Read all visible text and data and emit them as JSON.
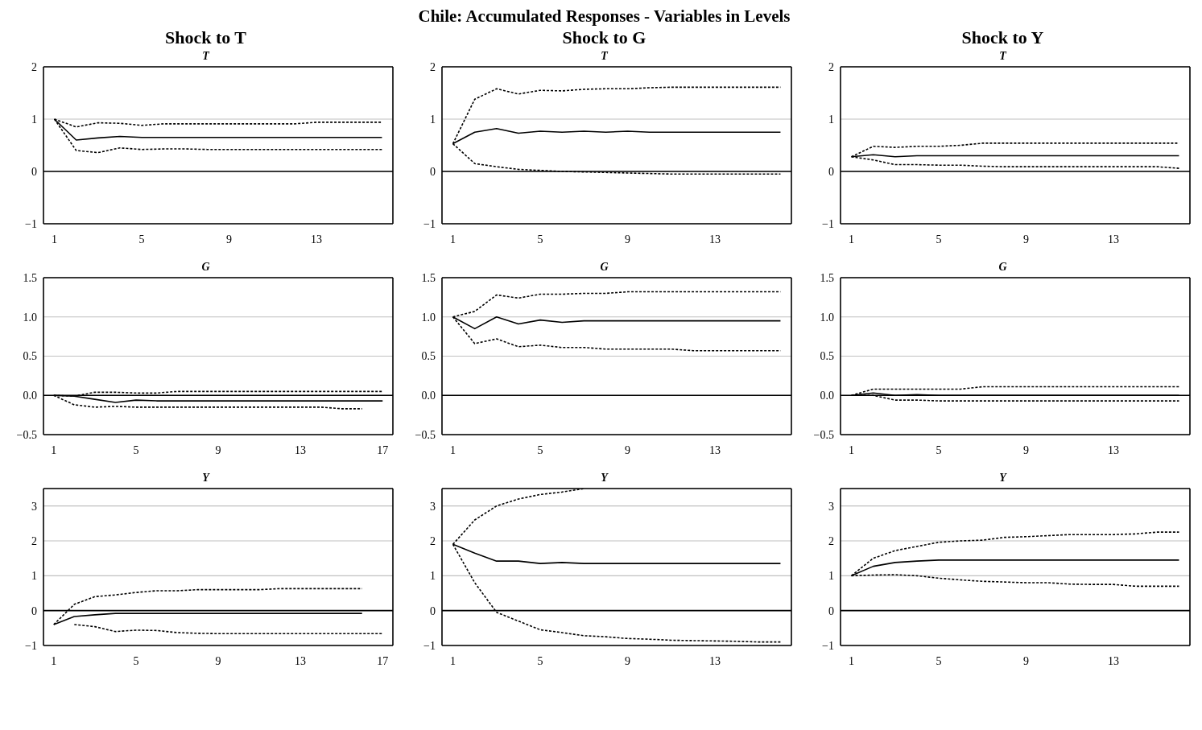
{
  "chart_data": [
    {
      "type": "line",
      "title": "T",
      "subtitle": "Shock to T",
      "x": [
        1,
        2,
        3,
        4,
        5,
        6,
        7,
        8,
        9,
        10,
        11,
        12,
        13,
        14,
        15,
        16
      ],
      "xlim": [
        0.5,
        16.5
      ],
      "xticks": [
        1,
        5,
        9,
        13
      ],
      "ylim": [
        -1,
        2
      ],
      "yticks": [
        {
          "value": -1,
          "label": "−1"
        },
        0,
        1,
        2
      ],
      "grid": "y",
      "ref_lines": [
        {
          "axis": "y",
          "value": 0,
          "color": "#000000"
        }
      ],
      "series": [
        {
          "color": "#000000",
          "line_style": "solid",
          "values": [
            1.0,
            0.6,
            0.64,
            0.67,
            0.65,
            0.65,
            0.65,
            0.65,
            0.65,
            0.65,
            0.65,
            0.65,
            0.65,
            0.65,
            0.65,
            0.65
          ]
        },
        {
          "color": "#000000",
          "line_style": "dotted",
          "values": [
            1.0,
            0.85,
            0.93,
            0.92,
            0.88,
            0.91,
            0.91,
            0.91,
            0.91,
            0.91,
            0.91,
            0.91,
            0.94,
            0.94,
            0.94,
            0.94
          ]
        },
        {
          "color": "#000000",
          "line_style": "dotted",
          "values": [
            1.0,
            0.4,
            0.36,
            0.45,
            0.42,
            0.43,
            0.43,
            0.42,
            0.42,
            0.42,
            0.42,
            0.42,
            0.42,
            0.42,
            0.42,
            0.42
          ]
        }
      ]
    },
    {
      "type": "line",
      "title": "T",
      "subtitle": "Shock to G",
      "annotations": [
        "Chile: Accumulated Responses - Variables in Levels"
      ],
      "x": [
        1,
        2,
        3,
        4,
        5,
        6,
        7,
        8,
        9,
        10,
        11,
        12,
        13,
        14,
        15,
        16
      ],
      "xlim": [
        0.5,
        16.5
      ],
      "xticks": [
        1,
        5,
        9,
        13
      ],
      "ylim": [
        -1,
        2
      ],
      "yticks": [
        {
          "value": -1,
          "label": "−1"
        },
        0,
        1,
        2
      ],
      "grid": "y",
      "ref_lines": [
        {
          "axis": "y",
          "value": 0,
          "color": "#000000"
        }
      ],
      "series": [
        {
          "color": "#000000",
          "line_style": "solid",
          "values": [
            0.53,
            0.75,
            0.82,
            0.73,
            0.77,
            0.75,
            0.77,
            0.75,
            0.77,
            0.75,
            0.75,
            0.75,
            0.75,
            0.75,
            0.75,
            0.75
          ]
        },
        {
          "color": "#000000",
          "line_style": "dotted",
          "values": [
            0.53,
            1.38,
            1.58,
            1.48,
            1.55,
            1.54,
            1.57,
            1.58,
            1.58,
            1.6,
            1.61,
            1.61,
            1.61,
            1.61,
            1.61,
            1.61
          ]
        },
        {
          "color": "#000000",
          "line_style": "dotted",
          "values": [
            0.53,
            0.15,
            0.09,
            0.04,
            0.02,
            0.0,
            -0.01,
            -0.02,
            -0.03,
            -0.04,
            -0.05,
            -0.05,
            -0.05,
            -0.05,
            -0.05,
            -0.05
          ]
        }
      ]
    },
    {
      "type": "line",
      "title": "T",
      "subtitle": "Shock to Y",
      "x": [
        1,
        2,
        3,
        4,
        5,
        6,
        7,
        8,
        9,
        10,
        11,
        12,
        13,
        14,
        15,
        16
      ],
      "xlim": [
        0.5,
        16.5
      ],
      "xticks": [
        1,
        5,
        9,
        13
      ],
      "ylim": [
        -1,
        2
      ],
      "yticks": [
        {
          "value": -1,
          "label": "−1"
        },
        0,
        1,
        2
      ],
      "grid": "y",
      "ref_lines": [
        {
          "axis": "y",
          "value": 0,
          "color": "#000000"
        }
      ],
      "series": [
        {
          "color": "#000000",
          "line_style": "solid",
          "values": [
            0.28,
            0.32,
            0.28,
            0.3,
            0.3,
            0.3,
            0.3,
            0.3,
            0.3,
            0.3,
            0.3,
            0.3,
            0.3,
            0.3,
            0.3,
            0.3
          ]
        },
        {
          "color": "#000000",
          "line_style": "dotted",
          "values": [
            0.28,
            0.48,
            0.46,
            0.48,
            0.48,
            0.5,
            0.54,
            0.54,
            0.54,
            0.54,
            0.54,
            0.54,
            0.54,
            0.54,
            0.54,
            0.54
          ]
        },
        {
          "color": "#000000",
          "line_style": "dotted",
          "values": [
            0.28,
            0.22,
            0.13,
            0.13,
            0.12,
            0.12,
            0.1,
            0.09,
            0.09,
            0.09,
            0.09,
            0.09,
            0.09,
            0.09,
            0.09,
            0.06
          ]
        }
      ]
    },
    {
      "type": "line",
      "title": "G",
      "x": [
        1,
        2,
        3,
        4,
        5,
        6,
        7,
        8,
        9,
        10,
        11,
        12,
        13,
        14,
        15,
        16,
        17
      ],
      "xlim": [
        0.5,
        17.5
      ],
      "xticks": [
        1,
        5,
        9,
        13,
        17
      ],
      "ylim": [
        -0.5,
        1.5
      ],
      "yticks": [
        {
          "value": -0.5,
          "label": "−0.5"
        },
        {
          "value": 0,
          "label": "0.0"
        },
        0.5,
        {
          "value": 1,
          "label": "1.0"
        },
        1.5
      ],
      "grid": "y",
      "ref_lines": [
        {
          "axis": "y",
          "value": 0,
          "color": "#000000"
        }
      ],
      "series": [
        {
          "color": "#000000",
          "line_style": "solid",
          "values": [
            0.0,
            -0.01,
            -0.05,
            -0.09,
            -0.06,
            -0.07,
            -0.07,
            -0.07,
            -0.07,
            -0.07,
            -0.07,
            -0.07,
            -0.07,
            -0.07,
            -0.07,
            -0.07,
            -0.07
          ]
        },
        {
          "color": "#000000",
          "line_style": "dotted",
          "values": [
            0.0,
            -0.01,
            0.04,
            0.04,
            0.03,
            0.03,
            0.05,
            0.05,
            0.05,
            0.05,
            0.05,
            0.05,
            0.05,
            0.05,
            0.05,
            0.05,
            0.05
          ]
        },
        {
          "color": "#000000",
          "line_style": "dotted",
          "values": [
            0.0,
            -0.12,
            -0.15,
            -0.14,
            -0.15,
            -0.15,
            -0.15,
            -0.15,
            -0.15,
            -0.15,
            -0.15,
            -0.15,
            -0.15,
            -0.15,
            -0.17,
            -0.17,
            null
          ]
        }
      ]
    },
    {
      "type": "line",
      "title": "G",
      "x": [
        1,
        2,
        3,
        4,
        5,
        6,
        7,
        8,
        9,
        10,
        11,
        12,
        13,
        14,
        15,
        16
      ],
      "xlim": [
        0.5,
        16.5
      ],
      "xticks": [
        1,
        5,
        9,
        13
      ],
      "ylim": [
        -0.5,
        1.5
      ],
      "yticks": [
        {
          "value": -0.5,
          "label": "−0.5"
        },
        {
          "value": 0,
          "label": "0.0"
        },
        0.5,
        {
          "value": 1,
          "label": "1.0"
        },
        1.5
      ],
      "grid": "y",
      "ref_lines": [
        {
          "axis": "y",
          "value": 0,
          "color": "#000000"
        }
      ],
      "series": [
        {
          "color": "#000000",
          "line_style": "solid",
          "values": [
            1.0,
            0.85,
            1.0,
            0.91,
            0.96,
            0.93,
            0.95,
            0.95,
            0.95,
            0.95,
            0.95,
            0.95,
            0.95,
            0.95,
            0.95,
            0.95
          ]
        },
        {
          "color": "#000000",
          "line_style": "dotted",
          "values": [
            1.0,
            1.07,
            1.28,
            1.24,
            1.29,
            1.29,
            1.3,
            1.3,
            1.32,
            1.32,
            1.32,
            1.32,
            1.32,
            1.32,
            1.32,
            1.32
          ]
        },
        {
          "color": "#000000",
          "line_style": "dotted",
          "values": [
            1.0,
            0.66,
            0.72,
            0.62,
            0.64,
            0.61,
            0.61,
            0.59,
            0.59,
            0.59,
            0.59,
            0.57,
            0.57,
            0.57,
            0.57,
            0.57
          ]
        }
      ]
    },
    {
      "type": "line",
      "title": "G",
      "x": [
        1,
        2,
        3,
        4,
        5,
        6,
        7,
        8,
        9,
        10,
        11,
        12,
        13,
        14,
        15,
        16
      ],
      "xlim": [
        0.5,
        16.5
      ],
      "xticks": [
        1,
        5,
        9,
        13
      ],
      "ylim": [
        -0.5,
        1.5
      ],
      "yticks": [
        {
          "value": -0.5,
          "label": "−0.5"
        },
        {
          "value": 0,
          "label": "0.0"
        },
        0.5,
        {
          "value": 1,
          "label": "1.0"
        },
        1.5
      ],
      "grid": "y",
      "ref_lines": [
        {
          "axis": "y",
          "value": 0,
          "color": "#000000"
        }
      ],
      "series": [
        {
          "color": "#000000",
          "line_style": "solid",
          "values": [
            0.0,
            0.03,
            0.0,
            0.01,
            0.0,
            0.0,
            0.0,
            0.0,
            0.0,
            0.0,
            0.0,
            0.0,
            0.0,
            0.0,
            0.0,
            0.0
          ]
        },
        {
          "color": "#000000",
          "line_style": "dotted",
          "values": [
            0.0,
            0.08,
            0.08,
            0.08,
            0.08,
            0.08,
            0.11,
            0.11,
            0.11,
            0.11,
            0.11,
            0.11,
            0.11,
            0.11,
            0.11,
            0.11
          ]
        },
        {
          "color": "#000000",
          "line_style": "dotted",
          "values": [
            0.0,
            0.0,
            -0.06,
            -0.06,
            -0.07,
            -0.07,
            -0.07,
            -0.07,
            -0.07,
            -0.07,
            -0.07,
            -0.07,
            -0.07,
            -0.07,
            -0.07,
            -0.07
          ]
        }
      ]
    },
    {
      "type": "line",
      "title": "Y",
      "x": [
        1,
        2,
        3,
        4,
        5,
        6,
        7,
        8,
        9,
        10,
        11,
        12,
        13,
        14,
        15,
        16,
        17
      ],
      "xlim": [
        0.5,
        17.5
      ],
      "xticks": [
        1,
        5,
        9,
        13,
        17
      ],
      "ylim": [
        -1,
        3.5
      ],
      "yticks": [
        {
          "value": -1,
          "label": "−1"
        },
        0,
        1,
        2,
        3
      ],
      "grid": "y",
      "ref_lines": [
        {
          "axis": "y",
          "value": 0,
          "color": "#000000"
        }
      ],
      "series": [
        {
          "color": "#000000",
          "line_style": "solid",
          "values": [
            -0.4,
            -0.17,
            -0.12,
            -0.08,
            -0.08,
            -0.08,
            -0.08,
            -0.08,
            -0.08,
            -0.08,
            -0.08,
            -0.08,
            -0.08,
            -0.08,
            -0.08,
            -0.08,
            null
          ]
        },
        {
          "color": "#000000",
          "line_style": "dotted",
          "values": [
            -0.4,
            0.18,
            0.4,
            0.45,
            0.52,
            0.57,
            0.57,
            0.6,
            0.6,
            0.6,
            0.6,
            0.63,
            0.63,
            0.63,
            0.63,
            0.63,
            null
          ]
        },
        {
          "color": "#000000",
          "line_style": "dotted",
          "values": [
            null,
            -0.4,
            -0.46,
            -0.6,
            -0.56,
            -0.57,
            -0.63,
            -0.65,
            -0.66,
            -0.66,
            -0.66,
            -0.66,
            -0.66,
            -0.66,
            -0.66,
            -0.66,
            -0.66
          ]
        }
      ]
    },
    {
      "type": "line",
      "title": "Y",
      "x": [
        1,
        2,
        3,
        4,
        5,
        6,
        7,
        8,
        9,
        10,
        11,
        12,
        13,
        14,
        15,
        16
      ],
      "xlim": [
        0.5,
        16.5
      ],
      "xticks": [
        1,
        5,
        9,
        13
      ],
      "ylim": [
        -1,
        3.5
      ],
      "yticks": [
        {
          "value": -1,
          "label": "−1"
        },
        0,
        1,
        2,
        3
      ],
      "grid": "y",
      "ref_lines": [
        {
          "axis": "y",
          "value": 0,
          "color": "#000000"
        }
      ],
      "series": [
        {
          "color": "#000000",
          "line_style": "solid",
          "values": [
            1.9,
            1.65,
            1.42,
            1.42,
            1.35,
            1.38,
            1.35,
            1.35,
            1.35,
            1.35,
            1.35,
            1.35,
            1.35,
            1.35,
            1.35,
            1.35
          ]
        },
        {
          "color": "#000000",
          "line_style": "dotted",
          "values": [
            1.9,
            2.6,
            3.0,
            3.2,
            3.33,
            3.4,
            3.5,
            null,
            null,
            null,
            null,
            null,
            null,
            null,
            null,
            null
          ]
        },
        {
          "color": "#000000",
          "line_style": "dotted",
          "values": [
            1.9,
            0.8,
            -0.05,
            -0.3,
            -0.55,
            -0.63,
            -0.72,
            -0.75,
            -0.8,
            -0.82,
            -0.85,
            -0.86,
            -0.87,
            -0.88,
            -0.9,
            -0.9
          ]
        }
      ]
    },
    {
      "type": "line",
      "title": "Y",
      "x": [
        1,
        2,
        3,
        4,
        5,
        6,
        7,
        8,
        9,
        10,
        11,
        12,
        13,
        14,
        15,
        16
      ],
      "xlim": [
        0.5,
        16.5
      ],
      "xticks": [
        1,
        5,
        9,
        13
      ],
      "ylim": [
        -1,
        3.5
      ],
      "yticks": [
        {
          "value": -1,
          "label": "−1"
        },
        0,
        1,
        2,
        3
      ],
      "grid": "y",
      "ref_lines": [
        {
          "axis": "y",
          "value": 0,
          "color": "#000000"
        }
      ],
      "series": [
        {
          "color": "#000000",
          "line_style": "solid",
          "values": [
            1.0,
            1.27,
            1.38,
            1.42,
            1.45,
            1.45,
            1.45,
            1.45,
            1.45,
            1.45,
            1.45,
            1.45,
            1.45,
            1.45,
            1.45,
            1.45
          ]
        },
        {
          "color": "#000000",
          "line_style": "dotted",
          "values": [
            1.0,
            1.5,
            1.72,
            1.84,
            1.96,
            2.0,
            2.02,
            2.1,
            2.12,
            2.15,
            2.18,
            2.18,
            2.18,
            2.2,
            2.25,
            2.25
          ]
        },
        {
          "color": "#000000",
          "line_style": "dotted",
          "values": [
            1.0,
            1.02,
            1.03,
            1.0,
            0.93,
            0.88,
            0.84,
            0.82,
            0.8,
            0.8,
            0.76,
            0.75,
            0.75,
            0.7,
            0.7,
            0.7
          ]
        }
      ]
    }
  ]
}
